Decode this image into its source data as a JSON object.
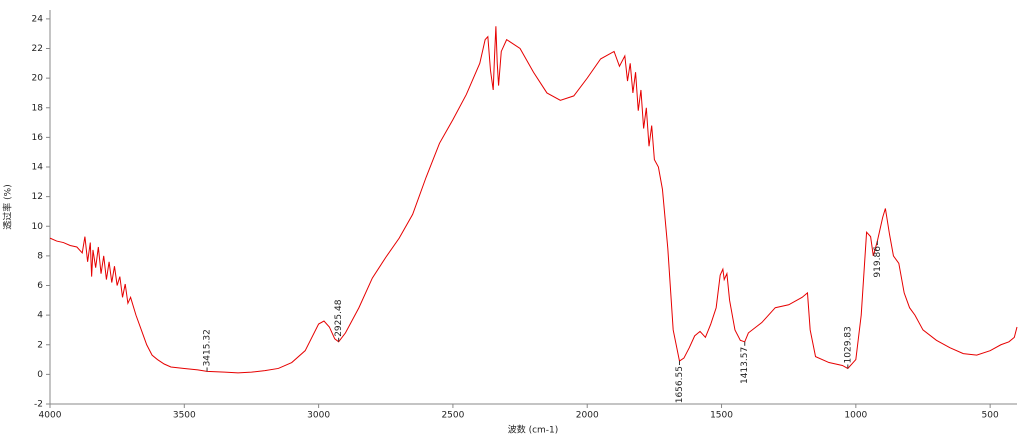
{
  "chart_data": {
    "type": "line",
    "x_label": "波数 (cm-1)",
    "y_label": "透过率 (%)",
    "color": "#e60000",
    "xlim": [
      4000,
      400
    ],
    "ylim": [
      -2,
      24.6
    ],
    "xticks": [
      4000,
      3500,
      3000,
      2500,
      2000,
      1500,
      1000,
      500
    ],
    "yticks": [
      -2,
      0,
      2,
      4,
      6,
      8,
      10,
      12,
      14,
      16,
      18,
      20,
      22,
      24
    ],
    "x": [
      4000,
      3975,
      3950,
      3925,
      3900,
      3880,
      3870,
      3860,
      3850,
      3845,
      3840,
      3830,
      3820,
      3810,
      3800,
      3790,
      3780,
      3770,
      3760,
      3750,
      3740,
      3730,
      3720,
      3710,
      3700,
      3680,
      3660,
      3640,
      3620,
      3600,
      3575,
      3550,
      3500,
      3450,
      3415.32,
      3350,
      3300,
      3250,
      3200,
      3150,
      3100,
      3050,
      3000,
      2980,
      2960,
      2940,
      2925.48,
      2900,
      2850,
      2800,
      2750,
      2700,
      2650,
      2600,
      2550,
      2500,
      2450,
      2400,
      2380,
      2370,
      2360,
      2350,
      2345,
      2340,
      2335,
      2330,
      2320,
      2300,
      2250,
      2200,
      2150,
      2100,
      2050,
      2000,
      1950,
      1920,
      1900,
      1880,
      1860,
      1850,
      1840,
      1830,
      1820,
      1810,
      1800,
      1790,
      1780,
      1770,
      1760,
      1750,
      1735,
      1720,
      1700,
      1680,
      1656.55,
      1640,
      1620,
      1600,
      1580,
      1560,
      1540,
      1520,
      1505,
      1495,
      1490,
      1480,
      1470,
      1450,
      1430,
      1413.57,
      1400,
      1350,
      1300,
      1250,
      1200,
      1180,
      1170,
      1150,
      1100,
      1050,
      1029.83,
      1000,
      980,
      960,
      945,
      935,
      919.86,
      900,
      890,
      875,
      860,
      840,
      820,
      800,
      780,
      750,
      700,
      650,
      600,
      550,
      500,
      460,
      430,
      410,
      400
    ],
    "values": [
      9.2,
      9.0,
      8.9,
      8.7,
      8.6,
      8.2,
      9.3,
      7.6,
      8.9,
      6.6,
      8.4,
      7.2,
      8.6,
      6.8,
      8.0,
      6.4,
      7.6,
      6.2,
      7.3,
      6.0,
      6.6,
      5.2,
      6.1,
      4.8,
      5.2,
      4.0,
      3.0,
      2.0,
      1.3,
      1.0,
      0.7,
      0.5,
      0.4,
      0.3,
      0.2,
      0.15,
      0.1,
      0.15,
      0.25,
      0.4,
      0.8,
      1.6,
      3.4,
      3.6,
      3.2,
      2.4,
      2.2,
      2.8,
      4.5,
      6.5,
      7.9,
      9.2,
      10.8,
      13.3,
      15.6,
      17.2,
      18.9,
      21.0,
      22.6,
      22.8,
      20.5,
      19.2,
      21.5,
      23.5,
      21.0,
      19.5,
      21.8,
      22.6,
      22.0,
      20.4,
      19.0,
      18.5,
      18.8,
      20.0,
      21.3,
      21.6,
      21.8,
      20.8,
      21.5,
      19.8,
      21.0,
      19.0,
      20.4,
      17.8,
      19.2,
      16.6,
      18.0,
      15.4,
      16.8,
      14.5,
      14.0,
      12.5,
      8.5,
      3.0,
      0.9,
      1.1,
      1.8,
      2.6,
      2.9,
      2.5,
      3.4,
      4.5,
      6.7,
      7.1,
      6.4,
      6.8,
      5.0,
      3.0,
      2.3,
      2.2,
      2.8,
      3.5,
      4.5,
      4.7,
      5.2,
      5.5,
      3.0,
      1.2,
      0.8,
      0.6,
      0.4,
      1.0,
      4.0,
      9.6,
      9.3,
      8.0,
      9.0,
      10.6,
      11.2,
      9.5,
      8.0,
      7.5,
      5.5,
      4.5,
      4.0,
      3.0,
      2.3,
      1.8,
      1.4,
      1.3,
      1.6,
      2.0,
      2.2,
      2.5,
      3.2
    ],
    "peaks": [
      {
        "x": 3415.32,
        "y": 0.2
      },
      {
        "x": 2925.48,
        "y": 2.2
      },
      {
        "x": 1656.55,
        "y": 0.9
      },
      {
        "x": 1413.57,
        "y": 2.2
      },
      {
        "x": 1029.83,
        "y": 0.4
      },
      {
        "x": 919.86,
        "y": 9.0
      }
    ]
  }
}
